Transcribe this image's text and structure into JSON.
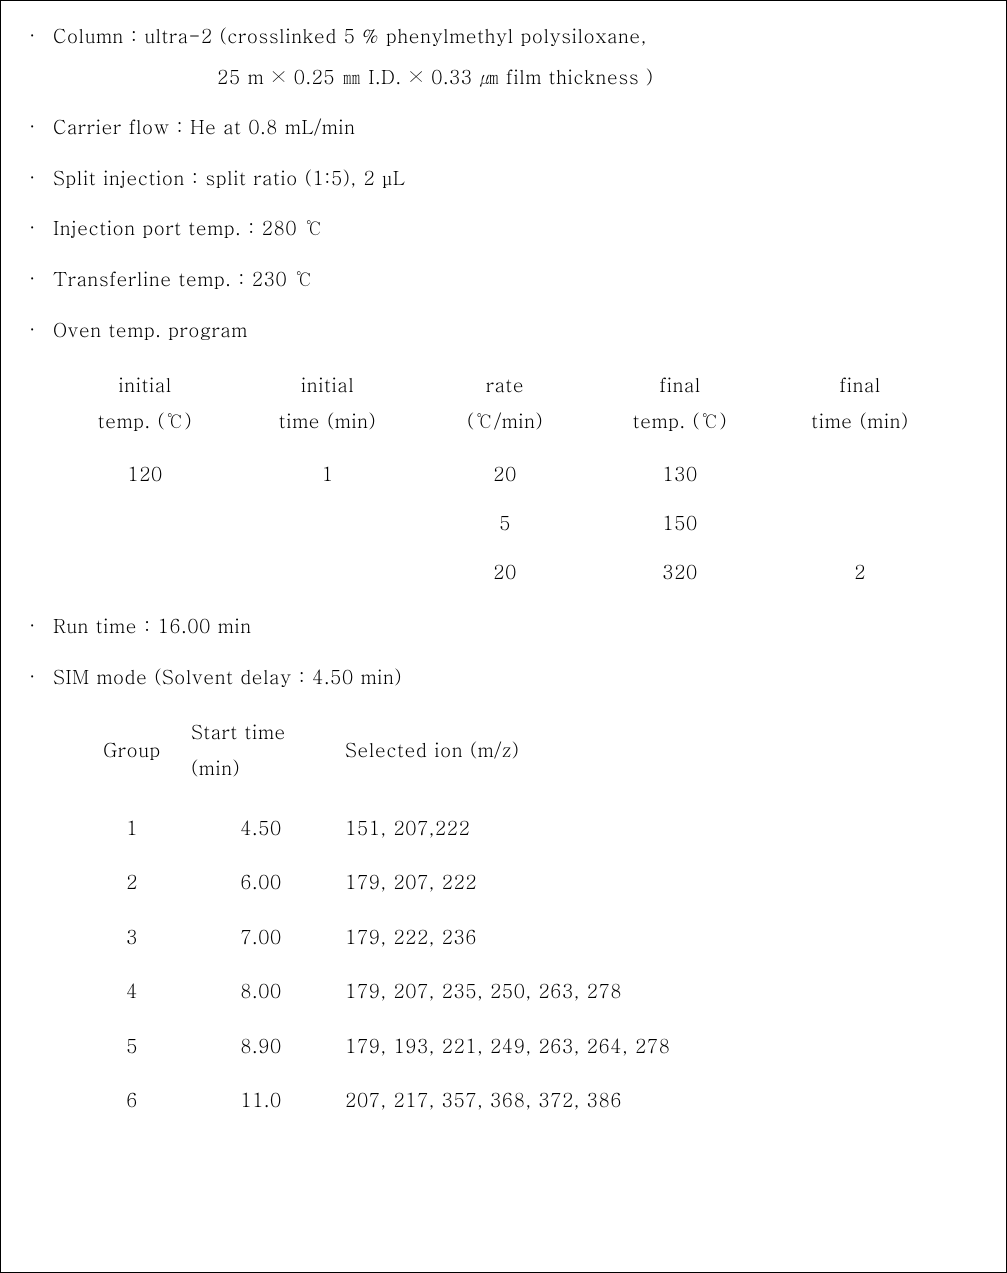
{
  "bullets": {
    "column_line1": "Column : ultra-2  (crosslinked 5 % phenylmethyl polysiloxane,",
    "column_line2": "25 m × 0.25 ㎜ I.D. × 0.33 ㎛ film thickness )",
    "carrier": "Carrier flow : He at 0.8 mL/min",
    "split": "Split injection : split ratio (1:5), 2 µL",
    "inj_port": "Injection port temp. : 280 ℃",
    "transfer": "Transferline temp. : 230 ℃",
    "oven_prog": "Oven temp. program",
    "run_time": "Run time : 16.00 min",
    "sim_mode": "SIM mode (Solvent delay : 4.50 min)"
  },
  "oven": {
    "headers": {
      "c1a": "initial",
      "c1b": "temp. (℃)",
      "c2a": "initial",
      "c2b": "time (min)",
      "c3a": "rate",
      "c3b": "(℃/min)",
      "c4a": "final",
      "c4b": "temp. (℃)",
      "c5a": "final",
      "c5b": "time (min)"
    },
    "rows": [
      {
        "c1": "120",
        "c2": "1",
        "c3": "20",
        "c4": "130",
        "c5": ""
      },
      {
        "c1": "",
        "c2": "",
        "c3": "5",
        "c4": "150",
        "c5": ""
      },
      {
        "c1": "",
        "c2": "",
        "c3": "20",
        "c4": "320",
        "c5": "2"
      }
    ]
  },
  "sim": {
    "headers": {
      "group": "Group",
      "start_a": "Start time",
      "start_b": "(min)",
      "ions": "Selected ion (m/z)"
    },
    "rows": [
      {
        "g": "1",
        "t": "4.50",
        "i": "151, 207,222"
      },
      {
        "g": "2",
        "t": "6.00",
        "i": "179, 207, 222"
      },
      {
        "g": "3",
        "t": "7.00",
        "i": "179, 222, 236"
      },
      {
        "g": "4",
        "t": "8.00",
        "i": "179, 207, 235, 250, 263, 278"
      },
      {
        "g": "5",
        "t": "8.90",
        "i": "179, 193, 221, 249, 263, 264, 278"
      },
      {
        "g": "6",
        "t": "11.0",
        "i": "207, 217, 357, 368, 372, 386"
      }
    ]
  }
}
